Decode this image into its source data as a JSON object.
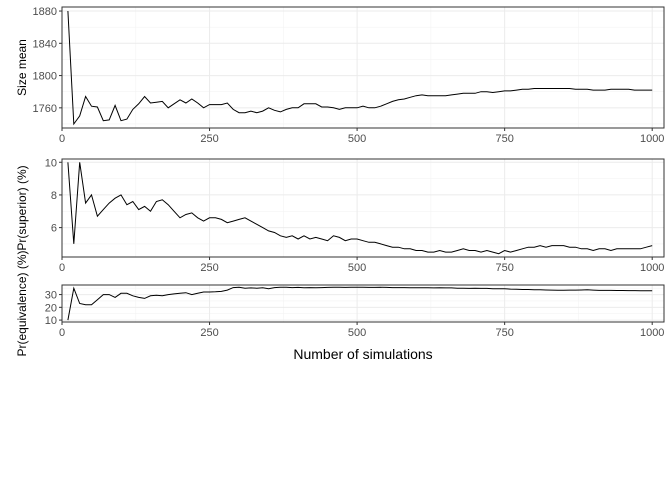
{
  "chart_data": [
    {
      "type": "line",
      "ylabel": "Size mean",
      "xlim": [
        0,
        1020
      ],
      "ylim": [
        1735,
        1885
      ],
      "x_ticks": [
        0,
        250,
        500,
        750,
        1000
      ],
      "y_ticks": [
        1760,
        1800,
        1840,
        1880
      ],
      "grid": true,
      "x": [
        10,
        20,
        30,
        40,
        50,
        60,
        70,
        80,
        90,
        100,
        110,
        120,
        130,
        140,
        150,
        160,
        170,
        180,
        190,
        200,
        210,
        220,
        230,
        240,
        250,
        260,
        270,
        280,
        290,
        300,
        310,
        320,
        330,
        340,
        350,
        360,
        370,
        380,
        390,
        400,
        410,
        420,
        430,
        440,
        450,
        460,
        470,
        480,
        490,
        500,
        510,
        520,
        530,
        540,
        550,
        560,
        570,
        580,
        590,
        600,
        610,
        620,
        630,
        640,
        650,
        660,
        670,
        680,
        690,
        700,
        710,
        720,
        730,
        740,
        750,
        760,
        770,
        780,
        790,
        800,
        810,
        820,
        830,
        840,
        850,
        860,
        870,
        880,
        890,
        900,
        910,
        920,
        930,
        940,
        950,
        960,
        970,
        980,
        990,
        1000
      ],
      "values": [
        1880,
        1740,
        1750,
        1774,
        1762,
        1761,
        1744,
        1745,
        1763,
        1744,
        1746,
        1758,
        1765,
        1774,
        1766,
        1767,
        1768,
        1760,
        1765,
        1770,
        1766,
        1771,
        1766,
        1760,
        1764,
        1764,
        1764,
        1766,
        1758,
        1754,
        1754,
        1756,
        1754,
        1756,
        1760,
        1757,
        1755,
        1758,
        1760,
        1760,
        1765,
        1765,
        1765,
        1761,
        1761,
        1760,
        1758,
        1760,
        1760,
        1760,
        1762,
        1760,
        1760,
        1762,
        1765,
        1768,
        1770,
        1771,
        1773,
        1775,
        1776,
        1775,
        1775,
        1775,
        1775,
        1776,
        1777,
        1778,
        1778,
        1778,
        1780,
        1780,
        1779,
        1780,
        1781,
        1781,
        1782,
        1783,
        1783,
        1784,
        1784,
        1784,
        1784,
        1784,
        1784,
        1784,
        1783,
        1783,
        1783,
        1782,
        1782,
        1782,
        1783,
        1783,
        1783,
        1783,
        1782,
        1782,
        1782,
        1782
      ]
    },
    {
      "type": "line",
      "ylabel": "Pr(superior) (%)",
      "xlim": [
        0,
        1020
      ],
      "ylim": [
        4.2,
        10.2
      ],
      "x_ticks": [
        0,
        250,
        500,
        750,
        1000
      ],
      "y_ticks": [
        6,
        8,
        10
      ],
      "grid": true,
      "x": [
        10,
        20,
        30,
        40,
        50,
        60,
        70,
        80,
        90,
        100,
        110,
        120,
        130,
        140,
        150,
        160,
        170,
        180,
        190,
        200,
        210,
        220,
        230,
        240,
        250,
        260,
        270,
        280,
        290,
        300,
        310,
        320,
        330,
        340,
        350,
        360,
        370,
        380,
        390,
        400,
        410,
        420,
        430,
        440,
        450,
        460,
        470,
        480,
        490,
        500,
        510,
        520,
        530,
        540,
        550,
        560,
        570,
        580,
        590,
        600,
        610,
        620,
        630,
        640,
        650,
        660,
        670,
        680,
        690,
        700,
        710,
        720,
        730,
        740,
        750,
        760,
        770,
        780,
        790,
        800,
        810,
        820,
        830,
        840,
        850,
        860,
        870,
        880,
        890,
        900,
        910,
        920,
        930,
        940,
        950,
        960,
        970,
        980,
        990,
        1000
      ],
      "values": [
        10,
        5,
        10,
        7.5,
        8,
        6.7,
        7.1,
        7.5,
        7.8,
        8.0,
        7.4,
        7.6,
        7.1,
        7.3,
        7.0,
        7.6,
        7.7,
        7.4,
        7.0,
        6.6,
        6.8,
        6.9,
        6.6,
        6.4,
        6.6,
        6.6,
        6.5,
        6.3,
        6.4,
        6.5,
        6.6,
        6.4,
        6.2,
        6.0,
        5.8,
        5.7,
        5.5,
        5.4,
        5.5,
        5.3,
        5.5,
        5.3,
        5.4,
        5.3,
        5.2,
        5.5,
        5.4,
        5.2,
        5.3,
        5.3,
        5.2,
        5.1,
        5.1,
        5.0,
        4.9,
        4.8,
        4.8,
        4.7,
        4.7,
        4.6,
        4.6,
        4.5,
        4.5,
        4.6,
        4.5,
        4.5,
        4.6,
        4.7,
        4.6,
        4.6,
        4.5,
        4.6,
        4.5,
        4.4,
        4.6,
        4.5,
        4.6,
        4.7,
        4.8,
        4.8,
        4.9,
        4.8,
        4.9,
        4.9,
        4.9,
        4.8,
        4.8,
        4.7,
        4.7,
        4.6,
        4.7,
        4.7,
        4.6,
        4.7,
        4.7,
        4.7,
        4.7,
        4.7,
        4.8,
        4.9
      ]
    },
    {
      "type": "line",
      "ylabel": "Pr(equivalence) (%)",
      "xlabel": "Number of simulations",
      "xlim": [
        0,
        1020
      ],
      "ylim": [
        8.5,
        37.5
      ],
      "x_ticks": [
        0,
        250,
        500,
        750,
        1000
      ],
      "y_ticks": [
        10,
        20,
        30
      ],
      "grid": true,
      "x": [
        10,
        20,
        30,
        40,
        50,
        60,
        70,
        80,
        90,
        100,
        110,
        120,
        130,
        140,
        150,
        160,
        170,
        180,
        190,
        200,
        210,
        220,
        230,
        240,
        250,
        260,
        270,
        280,
        290,
        300,
        310,
        320,
        330,
        340,
        350,
        360,
        370,
        380,
        390,
        400,
        410,
        420,
        430,
        440,
        450,
        460,
        470,
        480,
        490,
        500,
        510,
        520,
        530,
        540,
        550,
        560,
        570,
        580,
        590,
        600,
        610,
        620,
        630,
        640,
        650,
        660,
        670,
        680,
        690,
        700,
        710,
        720,
        730,
        740,
        750,
        760,
        770,
        780,
        790,
        800,
        810,
        820,
        830,
        840,
        850,
        860,
        870,
        880,
        890,
        900,
        910,
        920,
        930,
        940,
        950,
        960,
        970,
        980,
        990,
        1000
      ],
      "values": [
        10,
        35,
        23,
        22,
        22,
        26,
        30,
        30,
        27.8,
        31,
        31,
        29,
        27.8,
        27,
        29,
        29.5,
        29,
        30,
        30.5,
        31,
        31.5,
        30,
        31,
        32,
        32,
        32.2,
        32.5,
        33.5,
        35.5,
        35.7,
        35,
        35.2,
        35,
        35.3,
        34.5,
        35.5,
        35.8,
        35.8,
        35.5,
        35.6,
        35.3,
        35.5,
        35.4,
        35.5,
        35.6,
        35.7,
        35.7,
        35.6,
        35.8,
        35.8,
        35.7,
        35.6,
        35.6,
        35.7,
        35.6,
        35.5,
        35.5,
        35.5,
        35.4,
        35.4,
        35.3,
        35.3,
        35.2,
        35.3,
        35.2,
        35.2,
        35.0,
        35.0,
        34.8,
        34.9,
        34.8,
        34.8,
        34.6,
        34.6,
        34.5,
        34.3,
        34.2,
        34.0,
        34.0,
        33.8,
        33.7,
        33.6,
        33.5,
        33.4,
        33.4,
        33.5,
        33.5,
        33.6,
        33.7,
        33.5,
        33.3,
        33.3,
        33.3,
        33.2,
        33.2,
        33.1,
        33.1,
        33.0,
        33.0,
        33.0
      ]
    }
  ]
}
